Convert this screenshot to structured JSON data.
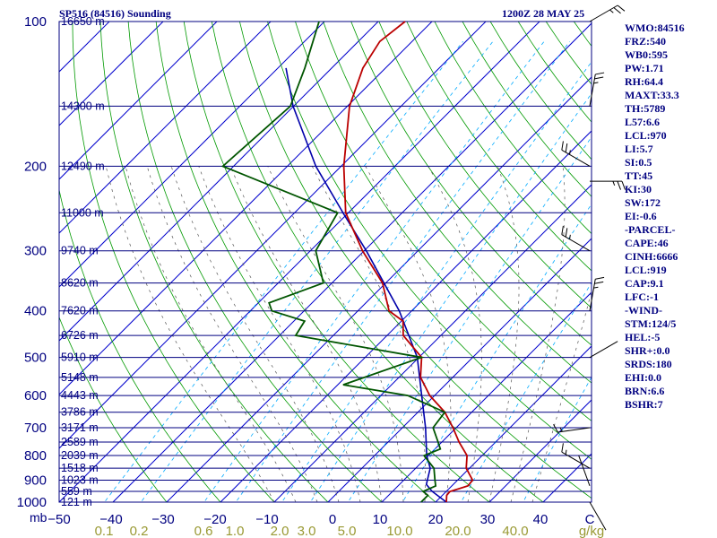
{
  "header": {
    "station": "SP516 (84516) Sounding",
    "time": "1200Z 28 MAY 25"
  },
  "indices": [
    "WMO:84516",
    "FRZ:540",
    "WB0:595",
    "PW:1.71",
    "RH:64.4",
    "MAXT:33.3",
    "TH:5789",
    "L57:6.6",
    "LCL:970",
    "LI:5.7",
    "SI:0.5",
    "TT:45",
    "KI:30",
    "SW:172",
    "EI:-0.6",
    "-PARCEL-",
    "CAPE:46",
    "CINH:6666",
    "LCL:919",
    "CAP:9.1",
    "LFC:-1",
    "-WIND-",
    "STM:124/5",
    "HEL:-5",
    "SHR+:0.0",
    "SRDS:180",
    "EHI:0.0",
    "BRN:6.6",
    "BSHR:7"
  ],
  "colors": {
    "isobar": "#000080",
    "isotherm": "#0000cc",
    "dry_adiabat": "#009900",
    "moist_adiabat": "#555555",
    "mixing_ratio": "#00aaff",
    "temperature": "#bb0000",
    "dewpoint": "#005500",
    "parcel": "#0000aa",
    "wind": "#000000",
    "axis_text": "#000080",
    "mixing_text": "#999933"
  },
  "chart_data": {
    "type": "skew-t log-p sounding",
    "pressure_axis": {
      "label": "mb",
      "ticks": [
        100,
        200,
        300,
        400,
        500,
        600,
        700,
        800,
        900,
        1000
      ],
      "range": [
        1000,
        100
      ]
    },
    "temperature_axis": {
      "ticks": [
        -50,
        -40,
        -30,
        -20,
        -10,
        0,
        10,
        20,
        30,
        40
      ],
      "unit_label": "C"
    },
    "mixing_ratio_axis": {
      "label": "g/kg",
      "ticks": [
        "0.1",
        "0.2",
        "0.6",
        "1.0",
        "2.0",
        "3.0",
        "5.0",
        "10.0",
        "20.0",
        "40.0"
      ]
    },
    "height_labels": [
      {
        "p": 100,
        "label": "16650 m"
      },
      {
        "p": 150,
        "label": "14300 m"
      },
      {
        "p": 200,
        "label": "12490 m"
      },
      {
        "p": 250,
        "label": "11000 m"
      },
      {
        "p": 300,
        "label": "9740 m"
      },
      {
        "p": 350,
        "label": "8620 m"
      },
      {
        "p": 400,
        "label": "7620 m"
      },
      {
        "p": 450,
        "label": "6726 m"
      },
      {
        "p": 500,
        "label": "5910 m"
      },
      {
        "p": 550,
        "label": "5148 m"
      },
      {
        "p": 600,
        "label": "4443 m"
      },
      {
        "p": 650,
        "label": "3786 m"
      },
      {
        "p": 700,
        "label": "3171 m"
      },
      {
        "p": 750,
        "label": "2589 m"
      },
      {
        "p": 800,
        "label": "2039 m"
      },
      {
        "p": 850,
        "label": "1518 m"
      },
      {
        "p": 900,
        "label": "1023 m"
      },
      {
        "p": 950,
        "label": "559 m"
      },
      {
        "p": 1000,
        "label": "121 m"
      }
    ],
    "temperature": [
      {
        "p": 1000,
        "t": 22.0
      },
      {
        "p": 968,
        "t": 20.8
      },
      {
        "p": 950,
        "t": 20.7
      },
      {
        "p": 925,
        "t": 23.0
      },
      {
        "p": 900,
        "t": 22.8
      },
      {
        "p": 850,
        "t": 19.4
      },
      {
        "p": 800,
        "t": 17.2
      },
      {
        "p": 750,
        "t": 13.2
      },
      {
        "p": 700,
        "t": 9.4
      },
      {
        "p": 650,
        "t": 5.0
      },
      {
        "p": 600,
        "t": -0.9
      },
      {
        "p": 550,
        "t": -6.0
      },
      {
        "p": 500,
        "t": -9.5
      },
      {
        "p": 450,
        "t": -17.0
      },
      {
        "p": 420,
        "t": -19.7
      },
      {
        "p": 400,
        "t": -24.2
      },
      {
        "p": 350,
        "t": -30.6
      },
      {
        "p": 300,
        "t": -40.3
      },
      {
        "p": 250,
        "t": -50.5
      },
      {
        "p": 200,
        "t": -59.5
      },
      {
        "p": 150,
        "t": -69.6
      },
      {
        "p": 125,
        "t": -74.2
      },
      {
        "p": 110,
        "t": -76.0
      },
      {
        "p": 100,
        "t": -75.0
      }
    ],
    "dewpoint": [
      {
        "p": 1000,
        "t": 17.3
      },
      {
        "p": 968,
        "t": 17.3
      },
      {
        "p": 950,
        "t": 15.7
      },
      {
        "p": 925,
        "t": 17.0
      },
      {
        "p": 900,
        "t": 15.8
      },
      {
        "p": 850,
        "t": 13.4
      },
      {
        "p": 800,
        "t": 9.2
      },
      {
        "p": 775,
        "t": 11.0
      },
      {
        "p": 750,
        "t": 9.3
      },
      {
        "p": 700,
        "t": 5.7
      },
      {
        "p": 650,
        "t": 5.0
      },
      {
        "p": 600,
        "t": -5.0
      },
      {
        "p": 570,
        "t": -19.0
      },
      {
        "p": 500,
        "t": -9.5
      },
      {
        "p": 450,
        "t": -37.0
      },
      {
        "p": 420,
        "t": -38.0
      },
      {
        "p": 400,
        "t": -46.0
      },
      {
        "p": 385,
        "t": -48.0
      },
      {
        "p": 350,
        "t": -41.6
      },
      {
        "p": 300,
        "t": -49.0
      },
      {
        "p": 250,
        "t": -52.0
      },
      {
        "p": 200,
        "t": -82.0
      },
      {
        "p": 150,
        "t": -80.6
      },
      {
        "p": 125,
        "t": -85.0
      },
      {
        "p": 100,
        "t": -91.0
      }
    ],
    "parcel": [
      {
        "p": 1000,
        "t": 22.0
      },
      {
        "p": 950,
        "t": 17.4
      },
      {
        "p": 919,
        "t": 15.0
      },
      {
        "p": 850,
        "t": 12.7
      },
      {
        "p": 800,
        "t": 9.7
      },
      {
        "p": 700,
        "t": 4.3
      },
      {
        "p": 600,
        "t": -2.4
      },
      {
        "p": 500,
        "t": -10.3
      },
      {
        "p": 400,
        "t": -22.3
      },
      {
        "p": 300,
        "t": -39.6
      },
      {
        "p": 250,
        "t": -51.0
      },
      {
        "p": 200,
        "t": -64.7
      },
      {
        "p": 150,
        "t": -80.1
      },
      {
        "p": 125,
        "t": -88.5
      }
    ],
    "wind_barbs": [
      {
        "p": 100,
        "dir": 60,
        "spd": 15
      },
      {
        "p": 150,
        "dir": 10,
        "spd": 15
      },
      {
        "p": 200,
        "dir": 300,
        "spd": 15
      },
      {
        "p": 215,
        "dir": 90,
        "spd": 15
      },
      {
        "p": 300,
        "dir": 300,
        "spd": 15
      },
      {
        "p": 400,
        "dir": 10,
        "spd": 15
      },
      {
        "p": 500,
        "dir": 60,
        "spd": 0
      },
      {
        "p": 700,
        "dir": 262,
        "spd": 5
      },
      {
        "p": 850,
        "dir": 300,
        "spd": 5
      },
      {
        "p": 925,
        "dir": 340,
        "spd": 0
      },
      {
        "p": 1000,
        "dir": 150,
        "spd": 0
      }
    ]
  }
}
